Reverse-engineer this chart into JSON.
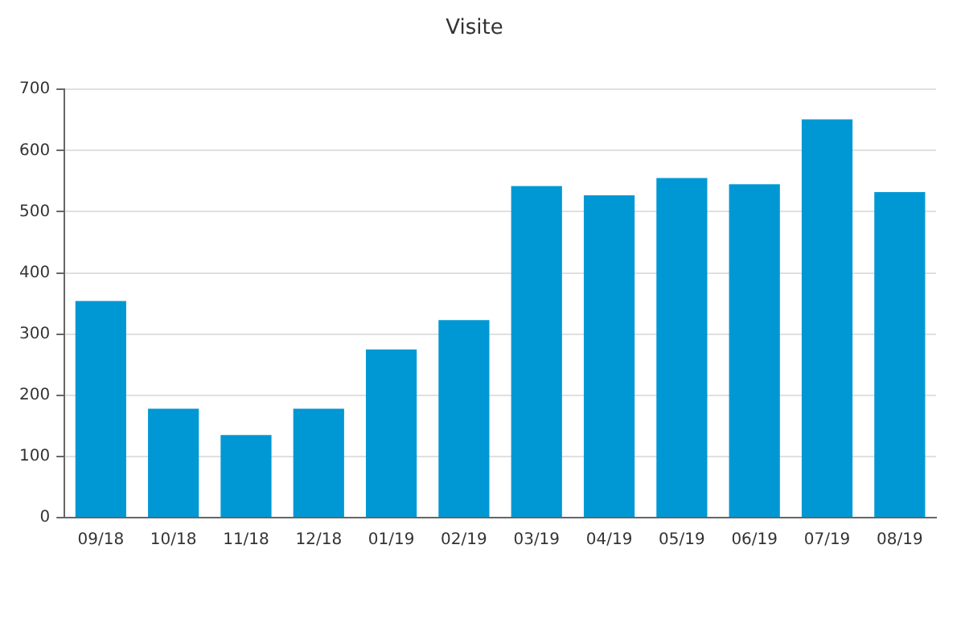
{
  "chart_data": {
    "type": "bar",
    "title": "Visite",
    "categories": [
      "09/18",
      "10/18",
      "11/18",
      "12/18",
      "01/19",
      "02/19",
      "03/19",
      "04/19",
      "05/19",
      "06/19",
      "07/19",
      "08/19"
    ],
    "values": [
      354,
      178,
      135,
      178,
      275,
      323,
      542,
      527,
      555,
      545,
      651,
      532
    ],
    "color": "#0098d4",
    "ylim": [
      0,
      700
    ],
    "yticks": [
      0,
      100,
      200,
      300,
      400,
      500,
      600,
      700
    ],
    "grid": "y"
  }
}
